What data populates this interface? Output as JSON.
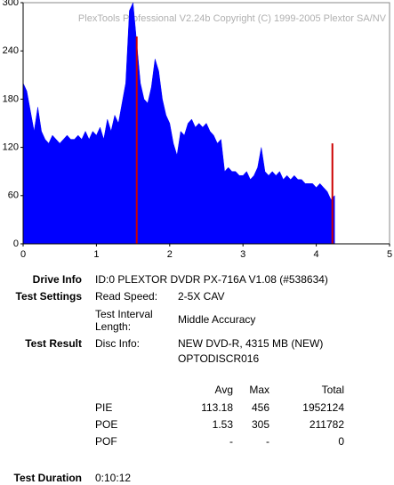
{
  "chart_data": {
    "type": "area",
    "copyright": "PlexTools Professional V2.24b Copyright (C) 1999-2005 Plextor SA/NV",
    "xlim": [
      0,
      5
    ],
    "xticks": [
      0,
      1,
      2,
      3,
      4,
      5
    ],
    "ylim": [
      0,
      300
    ],
    "yticks": [
      0,
      60,
      120,
      180,
      240,
      300
    ],
    "series": [
      {
        "color": "#0000ff",
        "x": [
          0,
          0.05,
          0.1,
          0.15,
          0.2,
          0.25,
          0.3,
          0.35,
          0.4,
          0.45,
          0.5,
          0.55,
          0.6,
          0.65,
          0.7,
          0.75,
          0.8,
          0.85,
          0.9,
          0.95,
          1,
          1.05,
          1.1,
          1.15,
          1.2,
          1.25,
          1.3,
          1.35,
          1.4,
          1.45,
          1.5,
          1.55,
          1.6,
          1.65,
          1.7,
          1.75,
          1.8,
          1.85,
          1.9,
          1.95,
          2,
          2.05,
          2.1,
          2.15,
          2.2,
          2.25,
          2.3,
          2.35,
          2.4,
          2.45,
          2.5,
          2.55,
          2.6,
          2.65,
          2.7,
          2.75,
          2.8,
          2.85,
          2.9,
          2.95,
          3,
          3.05,
          3.1,
          3.15,
          3.2,
          3.25,
          3.3,
          3.35,
          3.4,
          3.45,
          3.5,
          3.55,
          3.6,
          3.65,
          3.7,
          3.75,
          3.8,
          3.85,
          3.9,
          3.95,
          4,
          4.05,
          4.1,
          4.15,
          4.2,
          4.25
        ],
        "values": [
          200,
          190,
          165,
          140,
          170,
          140,
          130,
          125,
          135,
          130,
          125,
          130,
          135,
          130,
          130,
          135,
          130,
          140,
          130,
          140,
          135,
          145,
          130,
          155,
          140,
          160,
          150,
          175,
          200,
          290,
          300,
          250,
          200,
          180,
          175,
          195,
          230,
          215,
          180,
          160,
          150,
          125,
          110,
          140,
          135,
          150,
          155,
          145,
          150,
          145,
          150,
          140,
          135,
          125,
          130,
          90,
          95,
          90,
          90,
          85,
          85,
          90,
          80,
          85,
          95,
          120,
          90,
          85,
          90,
          85,
          90,
          80,
          85,
          80,
          85,
          80,
          80,
          75,
          75,
          75,
          70,
          75,
          70,
          65,
          55,
          60
        ]
      },
      {
        "color": "#cc0000",
        "x": [
          1.55,
          4.22
        ],
        "values": [
          258,
          125
        ]
      }
    ]
  },
  "info": {
    "drive_label": "Drive Info",
    "drive": "ID:0 PLEXTOR DVDR PX-716A V1.08 (#538634)",
    "settings_label": "Test Settings",
    "speed_label": "Read Speed:",
    "speed": "2-5X CAV",
    "interval_label": [
      "Test Interval",
      "Length:"
    ],
    "interval": "Middle Accuracy",
    "result_label": "Test Result",
    "disc_label": "Disc Info:",
    "disc": [
      "NEW DVD-R, 4315 MB (NEW)",
      "OPTODISCR016"
    ],
    "table": {
      "header": [
        "Avg",
        "Max",
        "Total"
      ],
      "rows": [
        [
          "PIE",
          "113.18",
          "456",
          "1952124"
        ],
        [
          "POE",
          "1.53",
          "305",
          "211782"
        ],
        [
          "POF",
          "-",
          "-",
          "0"
        ]
      ]
    },
    "duration_label": "Test Duration",
    "duration": "0:10:12"
  }
}
